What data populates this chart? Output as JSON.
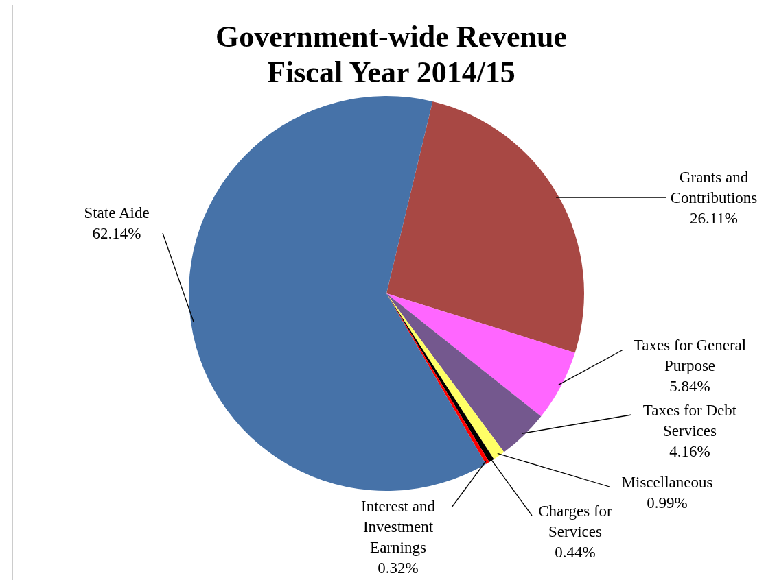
{
  "chart_data": {
    "type": "pie",
    "title": "Government-wide Revenue\nFiscal Year 2014/15",
    "categories": [
      "Grants and Contributions",
      "Taxes for General Purpose",
      "Taxes for Debt Services",
      "Miscellaneous",
      "Charges for Services",
      "Interest and Investment Earnings",
      "State Aide"
    ],
    "values": [
      26.11,
      5.84,
      4.16,
      0.99,
      0.44,
      0.32,
      62.14
    ],
    "colors": [
      "#a84844",
      "#ff66ff",
      "#74588e",
      "#ffff66",
      "#000000",
      "#ff0000",
      "#4672a8"
    ],
    "value_labels": [
      "26.11%",
      "5.84%",
      "4.16%",
      "0.99%",
      "0.44%",
      "0.32%",
      "62.14%"
    ]
  }
}
